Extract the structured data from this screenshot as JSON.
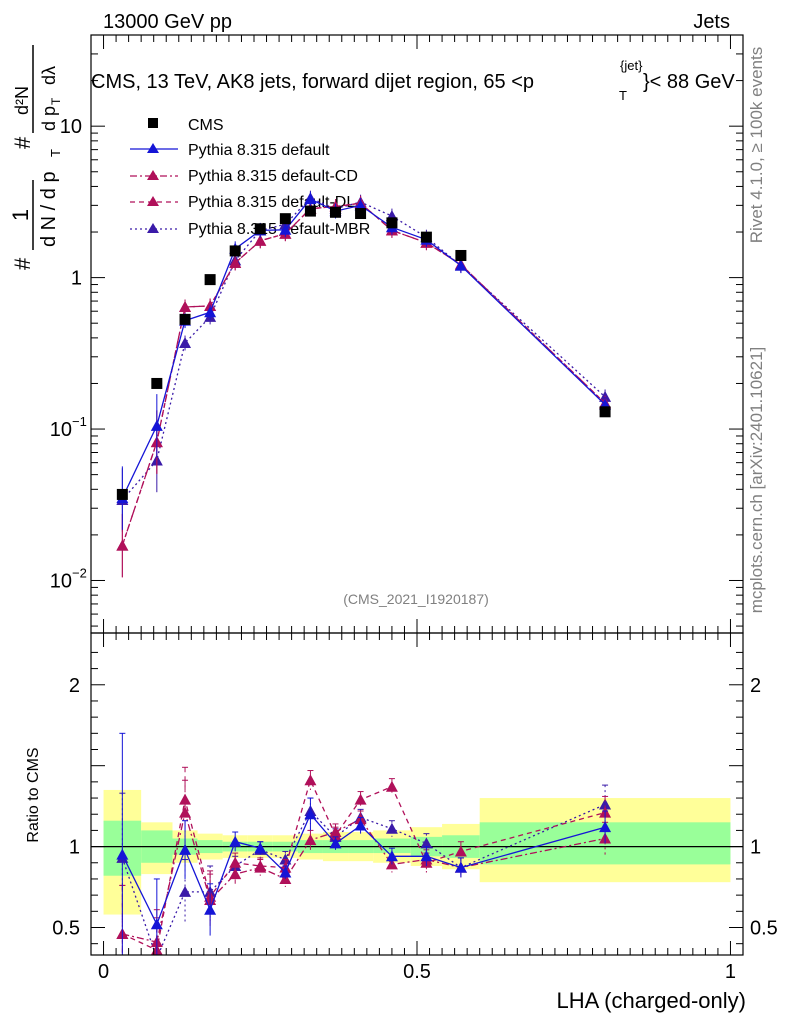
{
  "header": {
    "energy_label": "13000 GeV pp",
    "category_label": "Jets"
  },
  "side_labels": {
    "rivet": "Rivet 4.1.0, ≥ 100k events",
    "mcplots": "mcplots.cern.ch [arXiv:2401.10621]"
  },
  "colors": {
    "data": "#000000",
    "default": "#1515d6",
    "cd": "#b0105a",
    "dl": "#b0105a",
    "mbr": "#3a1aa8",
    "band_inner": "#99ff99",
    "band_outer": "#ffff99"
  },
  "chart_data": {
    "type": "line",
    "title_parts": {
      "main": "CMS, 13 TeV, AK8 jets, forward dijet region, 65 <p",
      "sup": "{jet}",
      "sub": "T",
      "tail": "}< 88 GeV"
    },
    "ylabel_top": "#",
    "ylabel_num": "1",
    "ylabel_den": "d N / d p",
    "ylabel_den_sub": "T",
    "ylabel_hash2": "#",
    "ylabel_d2N": "d²N",
    "ylabel_dpT": "d p",
    "ylabel_dpT_sub": "T",
    "ylabel_dlambda": "dλ",
    "xlabel": "LHA (charged-only)",
    "ratio_ylabel": "Ratio to CMS",
    "watermark": "(CMS_2021_I1920187)",
    "xlim": [
      -0.02,
      1.02
    ],
    "ylim_main": [
      0.0045,
      40
    ],
    "ylim_ratio": [
      0.33,
      2.32
    ],
    "main_yticks": [
      {
        "value": 10,
        "label": "10"
      },
      {
        "value": 1,
        "label": "1"
      },
      {
        "value": 0.1,
        "label": "10",
        "exp": "−1"
      },
      {
        "value": 0.01,
        "label": "10",
        "exp": "−2"
      }
    ],
    "ratio_yticks": [
      {
        "value": 0.5,
        "label": "0.5"
      },
      {
        "value": 1,
        "label": "1"
      },
      {
        "value": 2,
        "label": "2"
      }
    ],
    "xticks": [
      {
        "value": 0,
        "label": "0"
      },
      {
        "value": 0.5,
        "label": "0.5"
      },
      {
        "value": 1,
        "label": "1"
      }
    ],
    "bins": [
      {
        "lo": 0.0,
        "hi": 0.06,
        "inner": [
          0.82,
          1.16
        ],
        "outer": [
          0.58,
          1.35
        ]
      },
      {
        "lo": 0.06,
        "hi": 0.11,
        "inner": [
          0.9,
          1.1
        ],
        "outer": [
          0.83,
          1.15
        ]
      },
      {
        "lo": 0.11,
        "hi": 0.15,
        "inner": [
          0.95,
          1.05
        ],
        "outer": [
          0.9,
          1.1
        ]
      },
      {
        "lo": 0.15,
        "hi": 0.19,
        "inner": [
          0.96,
          1.04
        ],
        "outer": [
          0.92,
          1.08
        ]
      },
      {
        "lo": 0.19,
        "hi": 0.23,
        "inner": [
          0.97,
          1.03
        ],
        "outer": [
          0.93,
          1.07
        ]
      },
      {
        "lo": 0.23,
        "hi": 0.27,
        "inner": [
          0.97,
          1.03
        ],
        "outer": [
          0.93,
          1.07
        ]
      },
      {
        "lo": 0.27,
        "hi": 0.31,
        "inner": [
          0.97,
          1.03
        ],
        "outer": [
          0.93,
          1.07
        ]
      },
      {
        "lo": 0.31,
        "hi": 0.35,
        "inner": [
          0.96,
          1.04
        ],
        "outer": [
          0.92,
          1.08
        ]
      },
      {
        "lo": 0.35,
        "hi": 0.39,
        "inner": [
          0.96,
          1.04
        ],
        "outer": [
          0.91,
          1.09
        ]
      },
      {
        "lo": 0.39,
        "hi": 0.43,
        "inner": [
          0.96,
          1.04
        ],
        "outer": [
          0.91,
          1.09
        ]
      },
      {
        "lo": 0.43,
        "hi": 0.49,
        "inner": [
          0.96,
          1.05
        ],
        "outer": [
          0.9,
          1.1
        ]
      },
      {
        "lo": 0.49,
        "hi": 0.54,
        "inner": [
          0.94,
          1.06
        ],
        "outer": [
          0.88,
          1.12
        ]
      },
      {
        "lo": 0.54,
        "hi": 0.6,
        "inner": [
          0.93,
          1.07
        ],
        "outer": [
          0.86,
          1.14
        ]
      },
      {
        "lo": 0.6,
        "hi": 1.0,
        "inner": [
          0.89,
          1.15
        ],
        "outer": [
          0.78,
          1.3
        ]
      }
    ],
    "data": {
      "name": "CMS",
      "x": [
        0.03,
        0.085,
        0.13,
        0.17,
        0.21,
        0.25,
        0.29,
        0.33,
        0.37,
        0.41,
        0.46,
        0.515,
        0.57,
        0.8
      ],
      "y": [
        0.037,
        0.2,
        0.53,
        0.97,
        1.5,
        2.1,
        2.45,
        2.75,
        2.7,
        2.65,
        2.3,
        1.85,
        1.4,
        0.13
      ]
    },
    "series": [
      {
        "name": "Pythia 8.315 default",
        "key": "default",
        "dash": "",
        "x": [
          0.03,
          0.085,
          0.13,
          0.17,
          0.21,
          0.25,
          0.29,
          0.33,
          0.37,
          0.41,
          0.46,
          0.515,
          0.57,
          0.8
        ],
        "y": [
          0.035,
          0.105,
          0.52,
          0.59,
          1.55,
          2.05,
          2.07,
          3.3,
          2.75,
          3.0,
          2.15,
          1.78,
          1.2,
          0.145
        ],
        "ratio": [
          0.95,
          0.52,
          0.98,
          0.61,
          1.03,
          0.99,
          0.84,
          1.2,
          1.02,
          1.13,
          0.94,
          0.94,
          0.87,
          1.12
        ],
        "ratio_err": [
          0.75,
          0.28,
          0.18,
          0.16,
          0.06,
          0.04,
          0.04,
          0.1,
          0.04,
          0.05,
          0.05,
          0.06,
          0.06,
          0.1
        ]
      },
      {
        "name": "Pythia 8.315 default-CD",
        "key": "cd",
        "dash": "7,3,2,3",
        "x": [
          0.03,
          0.085,
          0.13,
          0.17,
          0.21,
          0.25,
          0.29,
          0.33,
          0.37,
          0.41,
          0.46,
          0.515,
          0.57,
          0.8
        ],
        "y": [
          0.017,
          0.082,
          0.64,
          0.65,
          1.25,
          1.75,
          1.95,
          2.85,
          2.95,
          3.1,
          2.05,
          1.7,
          1.22,
          0.148
        ],
        "ratio": [
          0.46,
          0.41,
          1.21,
          0.67,
          0.83,
          0.87,
          0.8,
          1.04,
          1.09,
          1.17,
          0.89,
          0.92,
          0.87,
          1.05
        ],
        "ratio_err": [
          0.3,
          0.2,
          0.2,
          0.16,
          0.06,
          0.05,
          0.05,
          0.06,
          0.05,
          0.05,
          0.05,
          0.06,
          0.06,
          0.1
        ]
      },
      {
        "name": "Pythia 8.315 default-DL",
        "key": "dl",
        "dash": "5,4",
        "x": [
          0.03,
          0.085,
          0.13,
          0.17,
          0.21,
          0.25,
          0.29,
          0.33,
          0.37,
          0.41,
          0.46,
          0.515,
          0.57,
          0.8
        ],
        "y": [
          0.017,
          0.082,
          0.64,
          0.65,
          1.25,
          1.75,
          1.95,
          2.85,
          2.95,
          3.1,
          2.05,
          1.7,
          1.22,
          0.148
        ],
        "ratio": [
          0.46,
          0.41,
          1.21,
          0.67,
          0.83,
          0.87,
          0.8,
          1.04,
          1.09,
          1.17,
          0.89,
          0.92,
          0.87,
          1.05
        ],
        "ratio_err": [
          0.3,
          0.2,
          0.2,
          0.16,
          0.06,
          0.05,
          0.05,
          0.06,
          0.05,
          0.05,
          0.05,
          0.06,
          0.06,
          0.1
        ],
        "ratio_override": [
          0.46,
          0.36,
          1.29,
          0.69,
          0.9,
          0.88,
          0.87,
          1.41,
          1.07,
          1.29,
          1.37,
          0.9,
          0.97,
          1.21
        ]
      },
      {
        "name": "Pythia 8.315 default-MBR",
        "key": "mbr",
        "dash": "2,3",
        "x": [
          0.03,
          0.085,
          0.13,
          0.17,
          0.21,
          0.25,
          0.29,
          0.33,
          0.37,
          0.41,
          0.46,
          0.515,
          0.57,
          0.8
        ],
        "y": [
          0.034,
          0.062,
          0.37,
          0.55,
          1.3,
          2.05,
          2.25,
          3.35,
          2.85,
          3.15,
          2.55,
          1.85,
          1.2,
          0.163
        ],
        "ratio": [
          0.93,
          0.31,
          0.72,
          0.72,
          0.88,
          0.98,
          0.92,
          1.22,
          1.06,
          1.18,
          1.11,
          1.02,
          0.87,
          1.26
        ],
        "ratio_err": [
          0.4,
          0.2,
          0.2,
          0.16,
          0.06,
          0.05,
          0.05,
          0.08,
          0.05,
          0.05,
          0.05,
          0.06,
          0.06,
          0.12
        ]
      }
    ]
  }
}
